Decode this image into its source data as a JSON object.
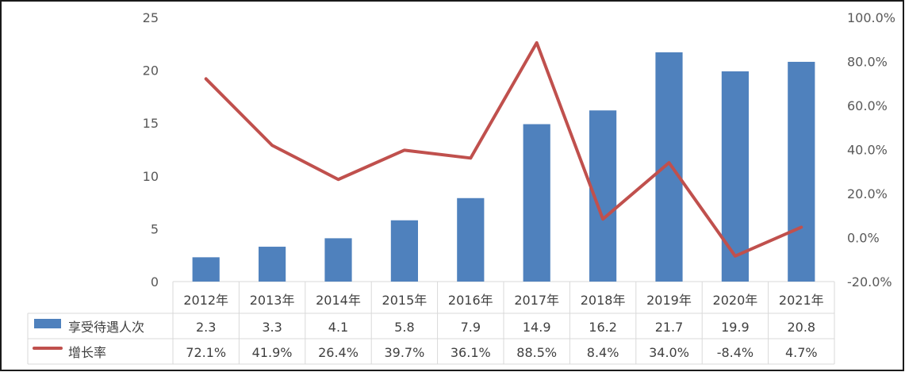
{
  "chart_data": {
    "type": "bar",
    "categories": [
      "2012年",
      "2013年",
      "2014年",
      "2015年",
      "2016年",
      "2017年",
      "2018年",
      "2019年",
      "2020年",
      "2021年"
    ],
    "series": [
      {
        "name": "享受待遇人次",
        "type": "bar",
        "axis": "left",
        "color": "#4F81BD",
        "values": [
          2.3,
          3.3,
          4.1,
          5.8,
          7.9,
          14.9,
          16.2,
          21.7,
          19.9,
          20.8
        ],
        "labels": [
          "2.3",
          "3.3",
          "4.1",
          "5.8",
          "7.9",
          "14.9",
          "16.2",
          "21.7",
          "19.9",
          "20.8"
        ]
      },
      {
        "name": "增长率",
        "type": "line",
        "axis": "right",
        "color": "#C0504D",
        "values": [
          72.1,
          41.9,
          26.4,
          39.7,
          36.1,
          88.5,
          8.4,
          34.0,
          -8.4,
          4.7
        ],
        "labels": [
          "72.1%",
          "41.9%",
          "26.4%",
          "39.7%",
          "36.1%",
          "88.5%",
          "8.4%",
          "34.0%",
          "-8.4%",
          "4.7%"
        ]
      }
    ],
    "ylim_left": [
      0,
      25
    ],
    "yticks_left": [
      "0",
      "5",
      "10",
      "15",
      "20",
      "25"
    ],
    "ylim_right": [
      -20,
      100
    ],
    "yticks_right": [
      "-20.0%",
      "0.0%",
      "20.0%",
      "40.0%",
      "60.0%",
      "80.0%",
      "100.0%"
    ],
    "grid": false,
    "legend": "data-table"
  }
}
